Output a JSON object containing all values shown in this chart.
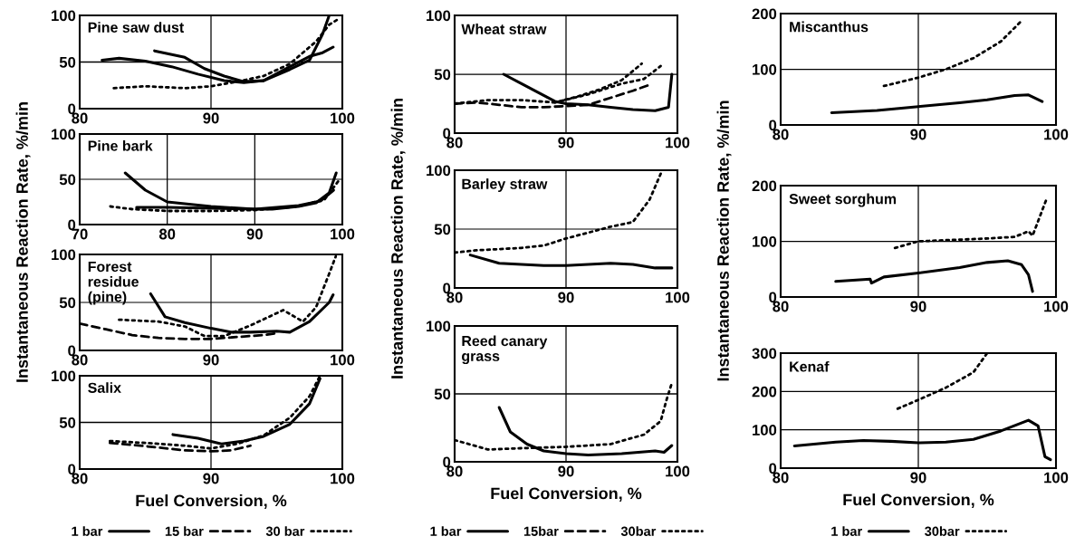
{
  "chart_data": [
    {
      "type": "line",
      "title": "Pine saw dust",
      "xlim": [
        80,
        100
      ],
      "xticks": [
        80,
        90,
        100
      ],
      "ylim": [
        0,
        100
      ],
      "yticks": [
        0,
        50,
        100
      ],
      "grid": true,
      "series": [
        {
          "color": "#000000",
          "line_style": "solid",
          "x": [
            81.7,
            83,
            85,
            87,
            89,
            91,
            92.5,
            94,
            96,
            97.5,
            98.5,
            99
          ],
          "values": [
            52,
            54,
            51,
            45,
            37,
            30,
            28,
            30,
            42,
            52,
            80,
            100
          ]
        },
        {
          "color": "#000000",
          "line_style": "solid",
          "x": [
            85.7,
            88,
            89.5,
            91,
            92.5,
            94,
            96,
            97.5,
            98.5,
            99.3
          ],
          "values": [
            62,
            55,
            43,
            35,
            29,
            30,
            45,
            56,
            60,
            66
          ]
        },
        {
          "color": "#000000",
          "line_style": "dotted",
          "x": [
            82.6,
            85,
            88,
            90,
            92,
            94,
            96,
            98,
            99,
            99.8
          ],
          "values": [
            22,
            24,
            22,
            24,
            29,
            35,
            48,
            72,
            90,
            97
          ]
        }
      ]
    },
    {
      "type": "line",
      "title": "Pine bark",
      "xlim": [
        70,
        100
      ],
      "xticks": [
        70,
        80,
        90,
        100
      ],
      "ylim": [
        0,
        100
      ],
      "yticks": [
        0,
        50,
        100
      ],
      "grid": true,
      "series": [
        {
          "color": "#000000",
          "line_style": "solid",
          "x": [
            75.2,
            77.5,
            80,
            85,
            90,
            92,
            95,
            97,
            98.5,
            99.3
          ],
          "values": [
            57,
            38,
            25,
            20,
            17,
            17,
            20,
            24,
            35,
            57
          ]
        },
        {
          "color": "#000000",
          "line_style": "solid",
          "x": [
            76.5,
            80,
            85,
            90,
            95,
            97.5,
            99
          ],
          "values": [
            19,
            19,
            18,
            17,
            21,
            26,
            38
          ]
        },
        {
          "color": "#000000",
          "line_style": "dotted",
          "x": [
            73.5,
            76,
            80,
            85,
            90,
            95,
            98,
            99.7
          ],
          "values": [
            20,
            17,
            15,
            15,
            16,
            20,
            28,
            50
          ]
        }
      ]
    },
    {
      "type": "line",
      "title": "Forest\nresidue\n(pine)",
      "xlim": [
        80,
        100
      ],
      "xticks": [
        80,
        90,
        100
      ],
      "ylim": [
        0,
        100
      ],
      "yticks": [
        0,
        50,
        100
      ],
      "grid": true,
      "ylabel": "Instantaneous Reaction Rate, %/min",
      "series": [
        {
          "color": "#000000",
          "line_style": "solid",
          "x": [
            85.4,
            86.5,
            88,
            90,
            91.5,
            93,
            95,
            96,
            97.5,
            99,
            99.3
          ],
          "values": [
            59,
            35,
            29,
            23,
            19,
            19,
            20,
            19,
            30,
            50,
            58
          ]
        },
        {
          "color": "#000000",
          "line_style": "dashed",
          "x": [
            80,
            82,
            84,
            86,
            88,
            90,
            92,
            94,
            95
          ],
          "values": [
            28,
            22,
            16,
            13,
            12,
            12,
            14,
            16,
            18
          ]
        },
        {
          "color": "#000000",
          "line_style": "dotted",
          "x": [
            83,
            86,
            88,
            89.5,
            91,
            93,
            95.5,
            97,
            98,
            99,
            99.5
          ],
          "values": [
            32,
            30,
            25,
            15,
            15,
            26,
            42,
            30,
            45,
            80,
            98
          ]
        }
      ]
    },
    {
      "type": "line",
      "title": "Salix",
      "xlim": [
        80,
        100
      ],
      "xticks": [
        80,
        90,
        100
      ],
      "ylim": [
        0,
        100
      ],
      "yticks": [
        0,
        50,
        100
      ],
      "grid": true,
      "xlabel": "Fuel Conversion, %",
      "legend": "bottom",
      "series": [
        {
          "name": "1 bar",
          "color": "#000000",
          "line_style": "solid",
          "x": [
            87.1,
            89,
            90.8,
            92.5,
            94,
            96,
            97.5,
            98.3
          ],
          "values": [
            37,
            33,
            27,
            30,
            35,
            48,
            70,
            97
          ]
        },
        {
          "name": "15 bar",
          "color": "#000000",
          "line_style": "dashed",
          "x": [
            82.3,
            84,
            86,
            88,
            90,
            91.5,
            93
          ],
          "values": [
            28,
            26,
            23,
            20,
            19,
            20,
            25
          ]
        },
        {
          "name": "30 bar",
          "color": "#000000",
          "line_style": "dotted",
          "x": [
            82.3,
            85,
            88,
            90,
            92,
            94,
            96,
            97.5,
            98.3
          ],
          "values": [
            30,
            28,
            25,
            22,
            27,
            36,
            55,
            78,
            100
          ]
        }
      ]
    },
    {
      "type": "line",
      "title": "Wheat straw",
      "xlim": [
        80,
        100
      ],
      "xticks": [
        80,
        90,
        100
      ],
      "ylim": [
        0,
        100
      ],
      "yticks": [
        0,
        50,
        100
      ],
      "grid": true,
      "legend": "bottom",
      "series": [
        {
          "name": "1 bar",
          "color": "#000000",
          "line_style": "solid",
          "x": [
            84.4,
            86,
            88,
            89,
            90,
            92,
            94,
            96,
            98,
            99.2,
            99.5
          ],
          "values": [
            50,
            42,
            32,
            27,
            25,
            24,
            22,
            20,
            19,
            22,
            50
          ]
        },
        {
          "name": "15bar",
          "color": "#000000",
          "line_style": "dashed",
          "x": [
            80,
            82,
            84,
            86,
            88,
            90,
            92,
            94,
            96,
            97.5
          ],
          "values": [
            25,
            26,
            24,
            22,
            22,
            23,
            24,
            30,
            36,
            41
          ]
        },
        {
          "name": "30bar",
          "color": "#000000",
          "line_style": "dotted",
          "x": [
            80,
            83,
            86,
            89,
            91,
            93,
            95,
            96.8
          ],
          "values": [
            25,
            28,
            28,
            26,
            31,
            37,
            45,
            59
          ]
        },
        {
          "color": "#000000",
          "line_style": "dotted",
          "x": [
            89,
            92,
            95,
            97,
            98.5
          ],
          "values": [
            26,
            33,
            42,
            46,
            57
          ]
        }
      ]
    },
    {
      "type": "line",
      "title": "Barley straw",
      "xlim": [
        80,
        100
      ],
      "xticks": [
        80,
        90,
        100
      ],
      "ylim": [
        0,
        100
      ],
      "yticks": [
        0,
        50,
        100
      ],
      "grid": true,
      "ylabel": "Instantaneous Reaction Rate, %/min",
      "series": [
        {
          "color": "#000000",
          "line_style": "solid",
          "x": [
            81.4,
            84,
            88,
            90,
            94,
            96,
            98,
            99.5
          ],
          "values": [
            28,
            21,
            19,
            19,
            21,
            20,
            17,
            17
          ]
        },
        {
          "color": "#000000",
          "line_style": "dotted",
          "x": [
            80,
            82,
            86,
            88,
            90,
            92,
            94,
            96,
            97.5,
            98.5
          ],
          "values": [
            30,
            32,
            34,
            36,
            42,
            47,
            52,
            56,
            75,
            97
          ]
        }
      ]
    },
    {
      "type": "line",
      "title": "Reed canary\ngrass",
      "xlim": [
        80,
        100
      ],
      "xticks": [
        80,
        90,
        100
      ],
      "ylim": [
        0,
        100
      ],
      "yticks": [
        0,
        50,
        100
      ],
      "grid": true,
      "xlabel": "Fuel Conversion, %",
      "series": [
        {
          "color": "#000000",
          "line_style": "solid",
          "x": [
            84,
            85,
            86.5,
            88,
            90,
            92,
            95,
            98,
            98.8,
            99.5
          ],
          "values": [
            40,
            22,
            13,
            8,
            6,
            5,
            6,
            8,
            7,
            12
          ]
        },
        {
          "color": "#000000",
          "line_style": "dotted",
          "x": [
            80,
            83,
            86,
            90,
            94,
            97,
            98.5,
            99,
            99.5
          ],
          "values": [
            16,
            9,
            10,
            11,
            13,
            20,
            30,
            45,
            58
          ]
        }
      ]
    },
    {
      "type": "line",
      "title": "Miscanthus",
      "xlim": [
        80,
        100
      ],
      "xticks": [
        80,
        90,
        100
      ],
      "ylim": [
        0,
        200
      ],
      "yticks": [
        0,
        100,
        200
      ],
      "grid": true,
      "series": [
        {
          "color": "#000000",
          "line_style": "solid",
          "x": [
            83.7,
            87,
            90,
            93,
            95,
            97,
            98,
            99
          ],
          "values": [
            22,
            26,
            33,
            40,
            45,
            53,
            54,
            42
          ]
        },
        {
          "color": "#000000",
          "line_style": "dotted",
          "x": [
            87.5,
            90,
            92,
            94,
            96,
            97.5
          ],
          "values": [
            70,
            85,
            100,
            120,
            150,
            187
          ]
        }
      ]
    },
    {
      "type": "line",
      "title": "Sweet sorghum",
      "xlim": [
        80,
        100
      ],
      "xticks": [
        80,
        90,
        100
      ],
      "ylim": [
        0,
        200
      ],
      "yticks": [
        0,
        100,
        200
      ],
      "grid": true,
      "ylabel": "Instantaneous Reaction Rate, %/min",
      "series": [
        {
          "color": "#000000",
          "line_style": "solid",
          "x": [
            84,
            86.5,
            86.6,
            87.5,
            90,
            93,
            95,
            96.5,
            97.5,
            98,
            98.3
          ],
          "values": [
            28,
            32,
            25,
            36,
            43,
            53,
            62,
            65,
            58,
            40,
            10
          ]
        },
        {
          "color": "#000000",
          "line_style": "dotted",
          "x": [
            88.3,
            90,
            92,
            95,
            97,
            98,
            98.3,
            99.3
          ],
          "values": [
            88,
            100,
            102,
            105,
            108,
            118,
            110,
            175
          ]
        }
      ]
    },
    {
      "type": "line",
      "title": "Kenaf",
      "xlim": [
        80,
        100
      ],
      "xticks": [
        80,
        90,
        100
      ],
      "ylim": [
        0,
        300
      ],
      "yticks": [
        0,
        100,
        200,
        300
      ],
      "grid": true,
      "xlabel": "Fuel Conversion, %",
      "legend": "bottom",
      "series": [
        {
          "name": "1 bar",
          "color": "#000000",
          "line_style": "solid",
          "x": [
            81,
            84,
            86,
            88,
            90,
            92,
            94,
            96,
            98,
            98.7,
            99.2,
            99.6
          ],
          "values": [
            58,
            68,
            72,
            70,
            66,
            68,
            75,
            97,
            125,
            110,
            30,
            22
          ]
        },
        {
          "name": "30bar",
          "color": "#000000",
          "line_style": "dotted",
          "x": [
            88.5,
            90,
            92,
            94,
            95
          ],
          "values": [
            155,
            178,
            210,
            250,
            300
          ]
        }
      ]
    }
  ]
}
